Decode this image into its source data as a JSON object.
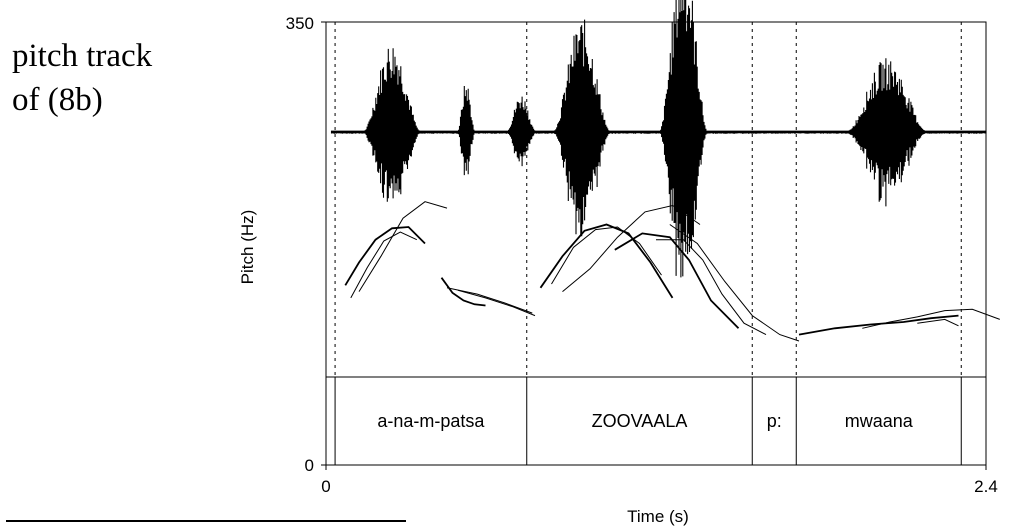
{
  "caption": {
    "line1": "pitch track",
    "line2": "of (8b)"
  },
  "chart_data": {
    "type": "line",
    "xlabel": "Time (s)",
    "ylabel": "Pitch (Hz)",
    "xlim": [
      0,
      2.4
    ],
    "ylim": [
      0,
      350
    ],
    "x_tick_labels": [
      "0",
      "2.4"
    ],
    "y_tick_labels": [
      "0",
      "350"
    ],
    "boundaries_s": [
      0.033,
      0.73,
      1.55,
      1.71,
      2.31
    ],
    "segments": [
      {
        "label": "a-na-m-patsa",
        "start": 0.033,
        "end": 0.73
      },
      {
        "label": "ZOOVAALA",
        "start": 0.73,
        "end": 1.55
      },
      {
        "label": "p:",
        "start": 1.55,
        "end": 1.71
      },
      {
        "label": "mwaana",
        "start": 1.71,
        "end": 2.31
      }
    ],
    "waveform": {
      "baseline_hz": 263,
      "bursts": [
        {
          "center": 0.24,
          "width": 0.2,
          "amplitude_hz": 72
        },
        {
          "center": 0.51,
          "width": 0.06,
          "amplitude_hz": 40
        },
        {
          "center": 0.71,
          "width": 0.1,
          "amplitude_hz": 30
        },
        {
          "center": 0.93,
          "width": 0.2,
          "amplitude_hz": 90
        },
        {
          "center": 1.3,
          "width": 0.17,
          "amplitude_hz": 145
        },
        {
          "center": 2.04,
          "width": 0.28,
          "amplitude_hz": 58
        }
      ]
    },
    "series": [
      {
        "x": [
          0.07,
          0.12,
          0.18,
          0.24,
          0.3,
          0.36
        ],
        "y": [
          142,
          160,
          178,
          187,
          188,
          175
        ]
      },
      {
        "x": [
          0.09,
          0.15,
          0.21,
          0.27,
          0.33
        ],
        "y": [
          132,
          156,
          177,
          184,
          178
        ]
      },
      {
        "x": [
          0.12,
          0.2,
          0.28,
          0.36,
          0.44
        ],
        "y": [
          137,
          165,
          195,
          208,
          203
        ]
      },
      {
        "x": [
          0.42,
          0.46,
          0.5,
          0.54,
          0.58
        ],
        "y": [
          148,
          136,
          130,
          127,
          126
        ]
      },
      {
        "x": [
          0.44,
          0.55,
          0.65,
          0.75
        ],
        "y": [
          140,
          135,
          128,
          120
        ]
      },
      {
        "x": [
          0.48,
          0.58,
          0.68,
          0.76
        ],
        "y": [
          138,
          132,
          125,
          118
        ]
      },
      {
        "x": [
          0.78,
          0.86,
          0.94,
          1.02,
          1.1,
          1.18,
          1.26
        ],
        "y": [
          140,
          165,
          185,
          190,
          183,
          160,
          132
        ]
      },
      {
        "x": [
          0.82,
          0.9,
          0.98,
          1.06,
          1.14,
          1.22
        ],
        "y": [
          143,
          172,
          186,
          188,
          175,
          150
        ]
      },
      {
        "x": [
          0.86,
          0.96,
          1.06,
          1.16,
          1.26,
          1.36
        ],
        "y": [
          137,
          155,
          180,
          200,
          205,
          190
        ]
      },
      {
        "x": [
          1.05,
          1.15,
          1.25,
          1.32,
          1.4,
          1.5
        ],
        "y": [
          170,
          183,
          180,
          162,
          130,
          108
        ]
      },
      {
        "x": [
          1.2,
          1.3,
          1.37,
          1.44,
          1.52,
          1.6
        ],
        "y": [
          178,
          178,
          162,
          135,
          112,
          103
        ]
      },
      {
        "x": [
          1.25,
          1.35,
          1.45,
          1.55,
          1.65,
          1.72
        ],
        "y": [
          190,
          175,
          145,
          118,
          103,
          98
        ]
      },
      {
        "x": [
          1.72,
          1.85,
          1.98,
          2.1,
          2.2,
          2.3
        ],
        "y": [
          103,
          108,
          111,
          113,
          116,
          118
        ]
      },
      {
        "x": [
          1.95,
          2.05,
          2.15,
          2.25,
          2.35,
          2.45
        ],
        "y": [
          108,
          113,
          117,
          122,
          123,
          115
        ]
      },
      {
        "x": [
          2.15,
          2.25,
          2.3
        ],
        "y": [
          112,
          115,
          110
        ]
      }
    ]
  }
}
